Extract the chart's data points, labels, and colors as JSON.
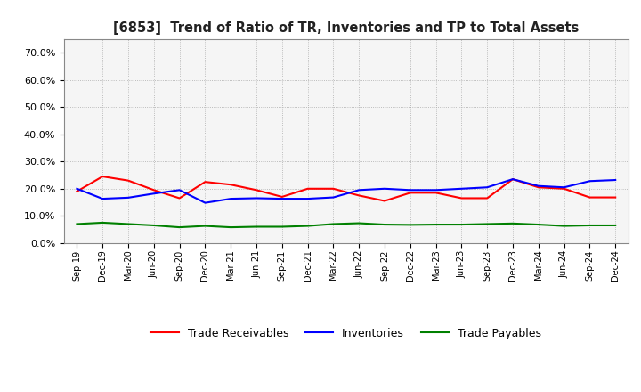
{
  "title": "[6853]  Trend of Ratio of TR, Inventories and TP to Total Assets",
  "x_labels": [
    "Sep-19",
    "Dec-19",
    "Mar-20",
    "Jun-20",
    "Sep-20",
    "Dec-20",
    "Mar-21",
    "Jun-21",
    "Sep-21",
    "Dec-21",
    "Mar-22",
    "Jun-22",
    "Sep-22",
    "Dec-22",
    "Mar-23",
    "Jun-23",
    "Sep-23",
    "Dec-23",
    "Mar-24",
    "Jun-24",
    "Sep-24",
    "Dec-24"
  ],
  "trade_receivables": [
    0.19,
    0.245,
    0.23,
    0.195,
    0.165,
    0.225,
    0.215,
    0.195,
    0.17,
    0.2,
    0.2,
    0.175,
    0.155,
    0.185,
    0.185,
    0.165,
    0.165,
    0.235,
    0.205,
    0.2,
    0.168,
    0.168
  ],
  "inventories": [
    0.2,
    0.163,
    0.167,
    0.182,
    0.195,
    0.148,
    0.163,
    0.165,
    0.163,
    0.163,
    0.168,
    0.195,
    0.2,
    0.195,
    0.195,
    0.2,
    0.205,
    0.235,
    0.21,
    0.205,
    0.228,
    0.232
  ],
  "trade_payables": [
    0.07,
    0.075,
    0.07,
    0.065,
    0.058,
    0.063,
    0.058,
    0.06,
    0.06,
    0.063,
    0.07,
    0.073,
    0.068,
    0.067,
    0.068,
    0.068,
    0.07,
    0.072,
    0.068,
    0.063,
    0.065,
    0.065
  ],
  "tr_color": "#ff0000",
  "inv_color": "#0000ff",
  "tp_color": "#008000",
  "ylim": [
    0.0,
    0.75
  ],
  "yticks": [
    0.0,
    0.1,
    0.2,
    0.3,
    0.4,
    0.5,
    0.6,
    0.7
  ],
  "bg_color": "#ffffff",
  "plot_bg_color": "#f5f5f5",
  "grid_color": "#aaaaaa",
  "legend_labels": [
    "Trade Receivables",
    "Inventories",
    "Trade Payables"
  ]
}
